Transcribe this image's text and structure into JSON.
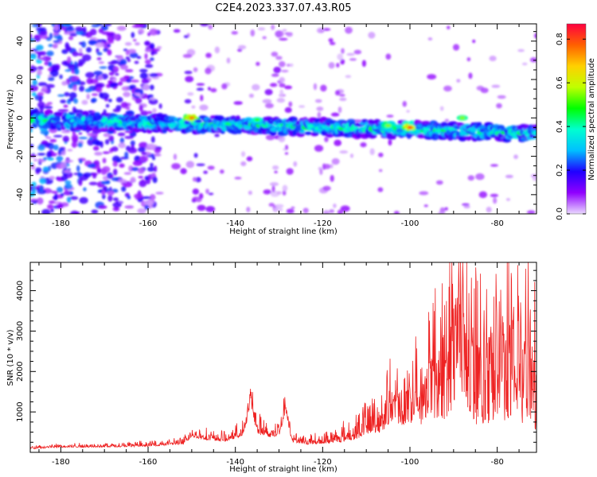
{
  "figure": {
    "title": "C2E4.2023.337.07.43.R05"
  },
  "chart_data": [
    {
      "type": "heatmap",
      "xlabel": "Height of straight line (km)",
      "ylabel": "Frequency (Hz)",
      "xlim": [
        -187,
        -71
      ],
      "ylim": [
        -50,
        49
      ],
      "xticks": [
        -180,
        -160,
        -140,
        -120,
        -100,
        -80
      ],
      "yticks": [
        -40,
        -20,
        0,
        20,
        40
      ],
      "colorbar": {
        "label": "Normalized spectral amplitude",
        "range": [
          0,
          0.87
        ],
        "ticks": [
          0.0,
          0.2,
          0.4,
          0.6,
          0.8
        ],
        "colormap": [
          "#ead9ff",
          "#9000ff",
          "#2000ff",
          "#00c0ff",
          "#00ffd0",
          "#00ff00",
          "#c0ff00",
          "#ffd000",
          "#ff6000",
          "#ff0040"
        ]
      },
      "band": {
        "center_hz_start": -1,
        "center_hz_end": -8,
        "half_width_hz": 4
      },
      "hotspots": [
        {
          "x": -150,
          "y": 0,
          "value": 0.75
        },
        {
          "x": -100,
          "y": -5,
          "value": 0.8
        },
        {
          "x": -88,
          "y": 0,
          "value": 0.55
        },
        {
          "x": -135,
          "y": -1,
          "value": 0.5
        },
        {
          "x": -105,
          "y": -4,
          "value": 0.55
        }
      ],
      "grid": false
    },
    {
      "type": "line",
      "xlabel": "Height of straight line (km)",
      "ylabel": "SNR (10 * v/v)",
      "xlim": [
        -187,
        -71
      ],
      "ylim": [
        0,
        4700
      ],
      "xticks": [
        -180,
        -160,
        -140,
        -120,
        -100,
        -80
      ],
      "yticks": [
        1000,
        2000,
        3000,
        4000
      ],
      "series": [
        {
          "color": "#ee2222",
          "x": [
            -187,
            -180,
            -170,
            -160,
            -152,
            -150,
            -146,
            -142,
            -138,
            -136.5,
            -135,
            -132,
            -130,
            -128.5,
            -127,
            -124,
            -120,
            -116,
            -112,
            -110,
            -106,
            -103,
            -100,
            -98,
            -96,
            -94,
            -92,
            -90,
            -88.5,
            -88,
            -86,
            -84,
            -82,
            -80,
            -78,
            -76,
            -74,
            -72,
            -71
          ],
          "y": [
            120,
            170,
            180,
            210,
            280,
            500,
            420,
            380,
            600,
            1550,
            700,
            550,
            600,
            1280,
            400,
            300,
            350,
            450,
            650,
            900,
            1100,
            1500,
            1700,
            1500,
            2200,
            2400,
            2300,
            3500,
            4700,
            3600,
            2800,
            2600,
            2900,
            3000,
            3000,
            3700,
            2800,
            3000,
            1700
          ],
          "noise_frac": [
            0.3,
            0.3,
            0.3,
            0.3,
            0.3,
            0.25,
            0.3,
            0.3,
            0.3,
            0.2,
            0.35,
            0.35,
            0.35,
            0.2,
            0.35,
            0.35,
            0.4,
            0.45,
            0.5,
            0.5,
            0.55,
            0.55,
            0.6,
            0.6,
            0.6,
            0.65,
            0.65,
            0.7,
            0.6,
            0.7,
            0.75,
            0.75,
            0.75,
            0.75,
            0.75,
            0.75,
            0.75,
            0.75,
            0.75
          ]
        }
      ],
      "grid": false
    }
  ]
}
